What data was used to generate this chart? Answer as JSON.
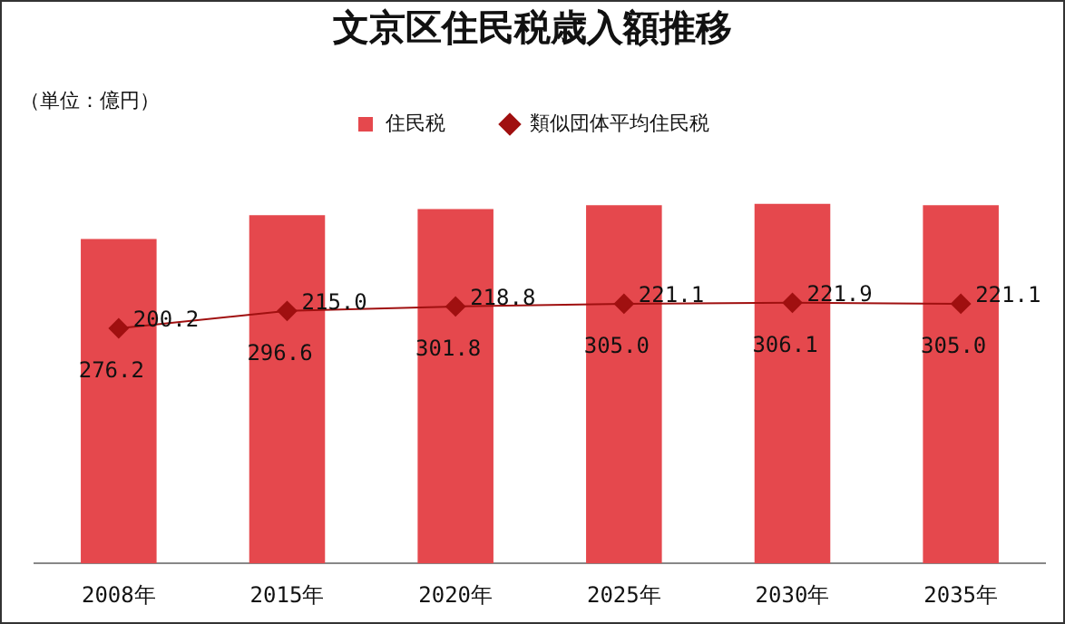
{
  "chart_data": {
    "type": "bar",
    "title": "文京区住民税歳入額推移",
    "annotations": [
      "（単位：億円）"
    ],
    "categories": [
      "2008年",
      "2015年",
      "2020年",
      "2025年",
      "2030年",
      "2035年"
    ],
    "series": [
      {
        "name": "住民税",
        "color": "#e5484d",
        "values": [
          276.2,
          296.6,
          301.8,
          305.0,
          306.1,
          305.0
        ],
        "value_labels": [
          "276.2",
          "296.6",
          "301.8",
          "305.0",
          "306.1",
          "305.0"
        ]
      },
      {
        "name": "類似団体平均住民税",
        "type": "line",
        "color": "#a01010",
        "marker": "diamond",
        "values": [
          200.2,
          215.0,
          218.8,
          221.1,
          221.9,
          221.1
        ],
        "value_labels": [
          "200.2",
          "215.0",
          "218.8",
          "221.1",
          "221.9",
          "221.1"
        ]
      }
    ],
    "tick_labels": "x",
    "legend": "top",
    "grid": false
  }
}
